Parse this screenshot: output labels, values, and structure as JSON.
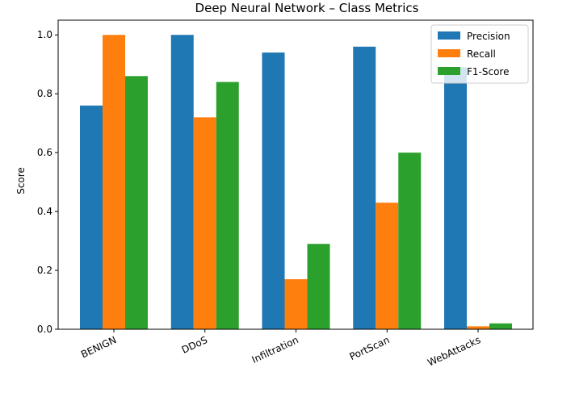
{
  "chart_data": {
    "type": "bar",
    "title": "Deep Neural Network – Class Metrics",
    "xlabel": "",
    "ylabel": "Score",
    "categories": [
      "BENIGN",
      "DDoS",
      "Infiltration",
      "PortScan",
      "WebAttacks"
    ],
    "series": [
      {
        "name": "Precision",
        "color": "#1f77b4",
        "values": [
          0.76,
          1.0,
          0.94,
          0.96,
          0.89
        ]
      },
      {
        "name": "Recall",
        "color": "#ff7f0e",
        "values": [
          1.0,
          0.72,
          0.17,
          0.43,
          0.01
        ]
      },
      {
        "name": "F1-Score",
        "color": "#2ca02c",
        "values": [
          0.86,
          0.84,
          0.29,
          0.6,
          0.02
        ]
      }
    ],
    "ylim": [
      0,
      1.05
    ],
    "yticks": [
      "0.0",
      "0.2",
      "0.4",
      "0.6",
      "0.8",
      "1.0"
    ],
    "grid": false,
    "legend_position": "top-right"
  }
}
